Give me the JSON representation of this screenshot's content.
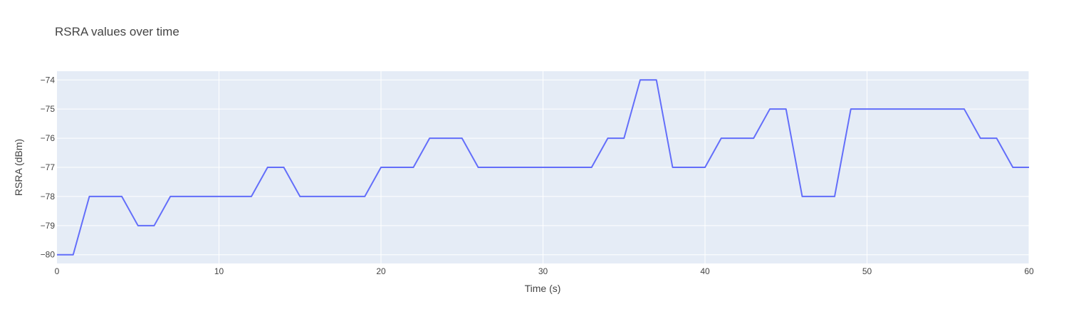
{
  "chart_data": {
    "type": "line",
    "title": "RSRA values over time",
    "xlabel": "Time (s)",
    "ylabel": "RSRA (dBm)",
    "xlim": [
      0,
      60
    ],
    "ylim": [
      -80.3,
      -73.7
    ],
    "xticks": [
      0,
      10,
      20,
      30,
      40,
      50,
      60
    ],
    "yticks": [
      -80,
      -79,
      -78,
      -77,
      -76,
      -75,
      -74
    ],
    "xtick_labels": [
      "0",
      "10",
      "20",
      "30",
      "40",
      "50",
      "60"
    ],
    "ytick_labels": [
      "−80",
      "−79",
      "−78",
      "−77",
      "−76",
      "−75",
      "−74"
    ],
    "grid": true,
    "line_color": "#636efa",
    "plot_bg": "#e5ecf6",
    "series": [
      {
        "x": [
          0,
          1,
          2,
          3,
          4,
          5,
          6,
          7,
          8,
          9,
          10,
          11,
          12,
          13,
          14,
          15,
          16,
          17,
          18,
          19,
          20,
          21,
          22,
          23,
          24,
          25,
          26,
          27,
          28,
          29,
          30,
          31,
          32,
          33,
          34,
          35,
          36,
          37,
          38,
          39,
          40,
          41,
          42,
          43,
          44,
          45,
          46,
          47,
          48,
          49,
          50,
          51,
          52,
          53,
          54,
          55,
          56,
          57,
          58,
          59,
          60
        ],
        "y": [
          -80,
          -80,
          -78,
          -78,
          -78,
          -79,
          -79,
          -78,
          -78,
          -78,
          -78,
          -78,
          -78,
          -77,
          -77,
          -78,
          -78,
          -78,
          -78,
          -78,
          -77,
          -77,
          -77,
          -76,
          -76,
          -76,
          -77,
          -77,
          -77,
          -77,
          -77,
          -77,
          -77,
          -77,
          -76,
          -76,
          -74,
          -74,
          -77,
          -77,
          -77,
          -76,
          -76,
          -76,
          -75,
          -75,
          -78,
          -78,
          -78,
          -75,
          -75,
          -75,
          -75,
          -75,
          -75,
          -75,
          -75,
          -76,
          -76,
          -77,
          -77
        ]
      }
    ]
  }
}
